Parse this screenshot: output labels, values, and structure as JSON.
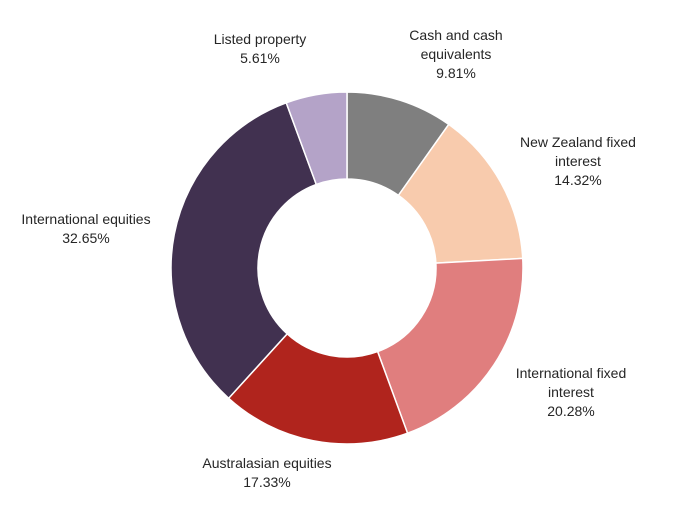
{
  "chart_data": {
    "type": "pie",
    "variant": "donut",
    "slices": [
      {
        "label_lines": [
          "Cash and cash",
          "equivalents"
        ],
        "value_label": "9.81%",
        "value": 9.81,
        "color": "#7f7f7f"
      },
      {
        "label_lines": [
          "New Zealand fixed",
          "interest"
        ],
        "value_label": "14.32%",
        "value": 14.32,
        "color": "#f8cbad"
      },
      {
        "label_lines": [
          "International fixed",
          "interest"
        ],
        "value_label": "20.28%",
        "value": 20.28,
        "color": "#e07e7e"
      },
      {
        "label_lines": [
          "Australasian equities"
        ],
        "value_label": "17.33%",
        "value": 17.33,
        "color": "#b0241d"
      },
      {
        "label_lines": [
          "International equities"
        ],
        "value_label": "32.65%",
        "value": 32.65,
        "color": "#413150"
      },
      {
        "label_lines": [
          "Listed property"
        ],
        "value_label": "5.61%",
        "value": 5.61,
        "color": "#b4a3c8"
      }
    ],
    "start_position": "12 o'clock",
    "direction": "clockwise",
    "legend": "none",
    "labels": "outside"
  }
}
